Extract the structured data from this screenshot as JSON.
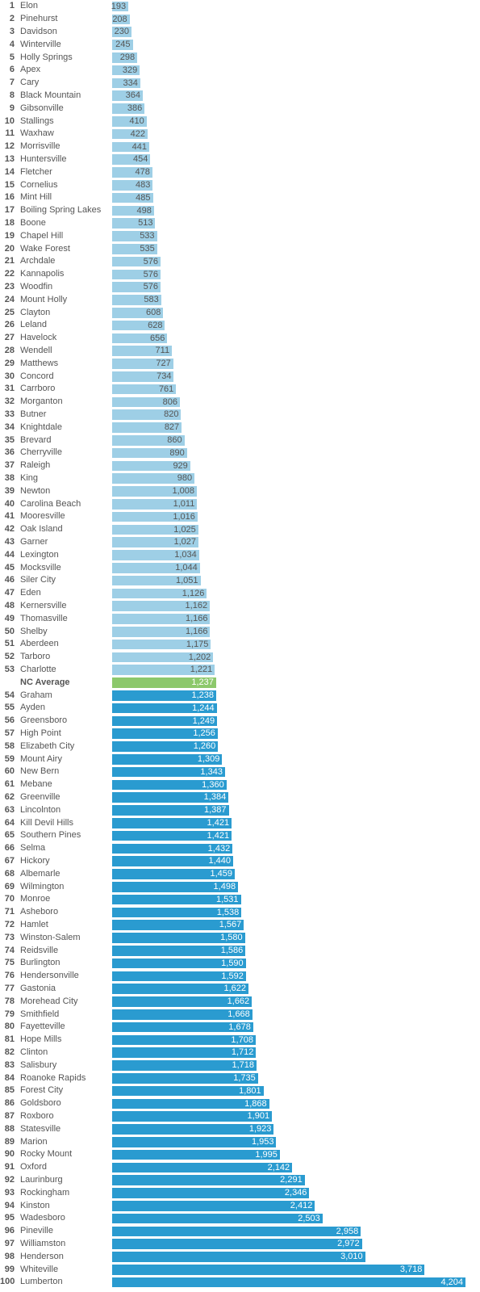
{
  "colors": {
    "above_average_bar": "#9ecfe6",
    "below_average_bar": "#2a9bd0",
    "average_bar": "#8cc86b",
    "above_average_label": "#555555",
    "below_average_label": "#ffffff",
    "text": "#555555"
  },
  "chart_data": {
    "type": "bar",
    "orientation": "horizontal",
    "xlim": [
      0,
      4204
    ],
    "grid": false,
    "average": {
      "label": "NC Average",
      "value": 1237,
      "display": "1,237",
      "after_rank": 53
    },
    "rows": [
      {
        "rank": 1,
        "name": "Elon",
        "value": 193,
        "display": "193"
      },
      {
        "rank": 2,
        "name": "Pinehurst",
        "value": 208,
        "display": "208"
      },
      {
        "rank": 3,
        "name": "Davidson",
        "value": 230,
        "display": "230"
      },
      {
        "rank": 4,
        "name": "Winterville",
        "value": 245,
        "display": "245"
      },
      {
        "rank": 5,
        "name": "Holly Springs",
        "value": 298,
        "display": "298"
      },
      {
        "rank": 6,
        "name": "Apex",
        "value": 329,
        "display": "329"
      },
      {
        "rank": 7,
        "name": "Cary",
        "value": 334,
        "display": "334"
      },
      {
        "rank": 8,
        "name": "Black Mountain",
        "value": 364,
        "display": "364"
      },
      {
        "rank": 9,
        "name": "Gibsonville",
        "value": 386,
        "display": "386"
      },
      {
        "rank": 10,
        "name": "Stallings",
        "value": 410,
        "display": "410"
      },
      {
        "rank": 11,
        "name": "Waxhaw",
        "value": 422,
        "display": "422"
      },
      {
        "rank": 12,
        "name": "Morrisville",
        "value": 441,
        "display": "441"
      },
      {
        "rank": 13,
        "name": "Huntersville",
        "value": 454,
        "display": "454"
      },
      {
        "rank": 14,
        "name": "Fletcher",
        "value": 478,
        "display": "478"
      },
      {
        "rank": 15,
        "name": "Cornelius",
        "value": 483,
        "display": "483"
      },
      {
        "rank": 16,
        "name": "Mint Hill",
        "value": 485,
        "display": "485"
      },
      {
        "rank": 17,
        "name": "Boiling Spring Lakes",
        "value": 498,
        "display": "498"
      },
      {
        "rank": 18,
        "name": "Boone",
        "value": 513,
        "display": "513"
      },
      {
        "rank": 19,
        "name": "Chapel Hill",
        "value": 533,
        "display": "533"
      },
      {
        "rank": 20,
        "name": "Wake Forest",
        "value": 535,
        "display": "535"
      },
      {
        "rank": 21,
        "name": "Archdale",
        "value": 576,
        "display": "576"
      },
      {
        "rank": 22,
        "name": "Kannapolis",
        "value": 576,
        "display": "576"
      },
      {
        "rank": 23,
        "name": "Woodfin",
        "value": 576,
        "display": "576"
      },
      {
        "rank": 24,
        "name": "Mount Holly",
        "value": 583,
        "display": "583"
      },
      {
        "rank": 25,
        "name": "Clayton",
        "value": 608,
        "display": "608"
      },
      {
        "rank": 26,
        "name": "Leland",
        "value": 628,
        "display": "628"
      },
      {
        "rank": 27,
        "name": "Havelock",
        "value": 656,
        "display": "656"
      },
      {
        "rank": 28,
        "name": "Wendell",
        "value": 711,
        "display": "711"
      },
      {
        "rank": 29,
        "name": "Matthews",
        "value": 727,
        "display": "727"
      },
      {
        "rank": 30,
        "name": "Concord",
        "value": 734,
        "display": "734"
      },
      {
        "rank": 31,
        "name": "Carrboro",
        "value": 761,
        "display": "761"
      },
      {
        "rank": 32,
        "name": "Morganton",
        "value": 806,
        "display": "806"
      },
      {
        "rank": 33,
        "name": "Butner",
        "value": 820,
        "display": "820"
      },
      {
        "rank": 34,
        "name": "Knightdale",
        "value": 827,
        "display": "827"
      },
      {
        "rank": 35,
        "name": "Brevard",
        "value": 860,
        "display": "860"
      },
      {
        "rank": 36,
        "name": "Cherryville",
        "value": 890,
        "display": "890"
      },
      {
        "rank": 37,
        "name": "Raleigh",
        "value": 929,
        "display": "929"
      },
      {
        "rank": 38,
        "name": "King",
        "value": 980,
        "display": "980"
      },
      {
        "rank": 39,
        "name": "Newton",
        "value": 1008,
        "display": "1,008"
      },
      {
        "rank": 40,
        "name": "Carolina Beach",
        "value": 1011,
        "display": "1,011"
      },
      {
        "rank": 41,
        "name": "Mooresville",
        "value": 1016,
        "display": "1,016"
      },
      {
        "rank": 42,
        "name": "Oak Island",
        "value": 1025,
        "display": "1,025"
      },
      {
        "rank": 43,
        "name": "Garner",
        "value": 1027,
        "display": "1,027"
      },
      {
        "rank": 44,
        "name": "Lexington",
        "value": 1034,
        "display": "1,034"
      },
      {
        "rank": 45,
        "name": "Mocksville",
        "value": 1044,
        "display": "1,044"
      },
      {
        "rank": 46,
        "name": "Siler City",
        "value": 1051,
        "display": "1,051"
      },
      {
        "rank": 47,
        "name": "Eden",
        "value": 1126,
        "display": "1,126"
      },
      {
        "rank": 48,
        "name": "Kernersville",
        "value": 1162,
        "display": "1,162"
      },
      {
        "rank": 49,
        "name": "Thomasville",
        "value": 1166,
        "display": "1,166"
      },
      {
        "rank": 50,
        "name": "Shelby",
        "value": 1166,
        "display": "1,166"
      },
      {
        "rank": 51,
        "name": "Aberdeen",
        "value": 1175,
        "display": "1,175"
      },
      {
        "rank": 52,
        "name": "Tarboro",
        "value": 1202,
        "display": "1,202"
      },
      {
        "rank": 53,
        "name": "Charlotte",
        "value": 1221,
        "display": "1,221"
      },
      {
        "rank": 54,
        "name": "Graham",
        "value": 1238,
        "display": "1,238"
      },
      {
        "rank": 55,
        "name": "Ayden",
        "value": 1244,
        "display": "1,244"
      },
      {
        "rank": 56,
        "name": "Greensboro",
        "value": 1249,
        "display": "1,249"
      },
      {
        "rank": 57,
        "name": "High Point",
        "value": 1256,
        "display": "1,256"
      },
      {
        "rank": 58,
        "name": "Elizabeth City",
        "value": 1260,
        "display": "1,260"
      },
      {
        "rank": 59,
        "name": "Mount Airy",
        "value": 1309,
        "display": "1,309"
      },
      {
        "rank": 60,
        "name": "New Bern",
        "value": 1343,
        "display": "1,343"
      },
      {
        "rank": 61,
        "name": "Mebane",
        "value": 1360,
        "display": "1,360"
      },
      {
        "rank": 62,
        "name": "Greenville",
        "value": 1384,
        "display": "1,384"
      },
      {
        "rank": 63,
        "name": "Lincolnton",
        "value": 1387,
        "display": "1,387"
      },
      {
        "rank": 64,
        "name": "Kill Devil Hills",
        "value": 1421,
        "display": "1,421"
      },
      {
        "rank": 65,
        "name": "Southern Pines",
        "value": 1421,
        "display": "1,421"
      },
      {
        "rank": 66,
        "name": "Selma",
        "value": 1432,
        "display": "1,432"
      },
      {
        "rank": 67,
        "name": "Hickory",
        "value": 1440,
        "display": "1,440"
      },
      {
        "rank": 68,
        "name": "Albemarle",
        "value": 1459,
        "display": "1,459"
      },
      {
        "rank": 69,
        "name": "Wilmington",
        "value": 1498,
        "display": "1,498"
      },
      {
        "rank": 70,
        "name": "Monroe",
        "value": 1531,
        "display": "1,531"
      },
      {
        "rank": 71,
        "name": "Asheboro",
        "value": 1538,
        "display": "1,538"
      },
      {
        "rank": 72,
        "name": "Hamlet",
        "value": 1567,
        "display": "1,567"
      },
      {
        "rank": 73,
        "name": "Winston-Salem",
        "value": 1580,
        "display": "1,580"
      },
      {
        "rank": 74,
        "name": "Reidsville",
        "value": 1586,
        "display": "1,586"
      },
      {
        "rank": 75,
        "name": "Burlington",
        "value": 1590,
        "display": "1,590"
      },
      {
        "rank": 76,
        "name": "Hendersonville",
        "value": 1592,
        "display": "1,592"
      },
      {
        "rank": 77,
        "name": "Gastonia",
        "value": 1622,
        "display": "1,622"
      },
      {
        "rank": 78,
        "name": "Morehead City",
        "value": 1662,
        "display": "1,662"
      },
      {
        "rank": 79,
        "name": "Smithfield",
        "value": 1668,
        "display": "1,668"
      },
      {
        "rank": 80,
        "name": "Fayetteville",
        "value": 1678,
        "display": "1,678"
      },
      {
        "rank": 81,
        "name": "Hope Mills",
        "value": 1708,
        "display": "1,708"
      },
      {
        "rank": 82,
        "name": "Clinton",
        "value": 1712,
        "display": "1,712"
      },
      {
        "rank": 83,
        "name": "Salisbury",
        "value": 1718,
        "display": "1,718"
      },
      {
        "rank": 84,
        "name": "Roanoke Rapids",
        "value": 1735,
        "display": "1,735"
      },
      {
        "rank": 85,
        "name": "Forest City",
        "value": 1801,
        "display": "1,801"
      },
      {
        "rank": 86,
        "name": "Goldsboro",
        "value": 1868,
        "display": "1,868"
      },
      {
        "rank": 87,
        "name": "Roxboro",
        "value": 1901,
        "display": "1,901"
      },
      {
        "rank": 88,
        "name": "Statesville",
        "value": 1923,
        "display": "1,923"
      },
      {
        "rank": 89,
        "name": "Marion",
        "value": 1953,
        "display": "1,953"
      },
      {
        "rank": 90,
        "name": "Rocky Mount",
        "value": 1995,
        "display": "1,995"
      },
      {
        "rank": 91,
        "name": "Oxford",
        "value": 2142,
        "display": "2,142"
      },
      {
        "rank": 92,
        "name": "Laurinburg",
        "value": 2291,
        "display": "2,291"
      },
      {
        "rank": 93,
        "name": "Rockingham",
        "value": 2346,
        "display": "2,346"
      },
      {
        "rank": 94,
        "name": "Kinston",
        "value": 2412,
        "display": "2,412"
      },
      {
        "rank": 95,
        "name": "Wadesboro",
        "value": 2503,
        "display": "2,503"
      },
      {
        "rank": 96,
        "name": "Pineville",
        "value": 2958,
        "display": "2,958"
      },
      {
        "rank": 97,
        "name": "Williamston",
        "value": 2972,
        "display": "2,972"
      },
      {
        "rank": 98,
        "name": "Henderson",
        "value": 3010,
        "display": "3,010"
      },
      {
        "rank": 99,
        "name": "Whiteville",
        "value": 3718,
        "display": "3,718"
      },
      {
        "rank": 100,
        "name": "Lumberton",
        "value": 4204,
        "display": "4,204"
      }
    ]
  }
}
